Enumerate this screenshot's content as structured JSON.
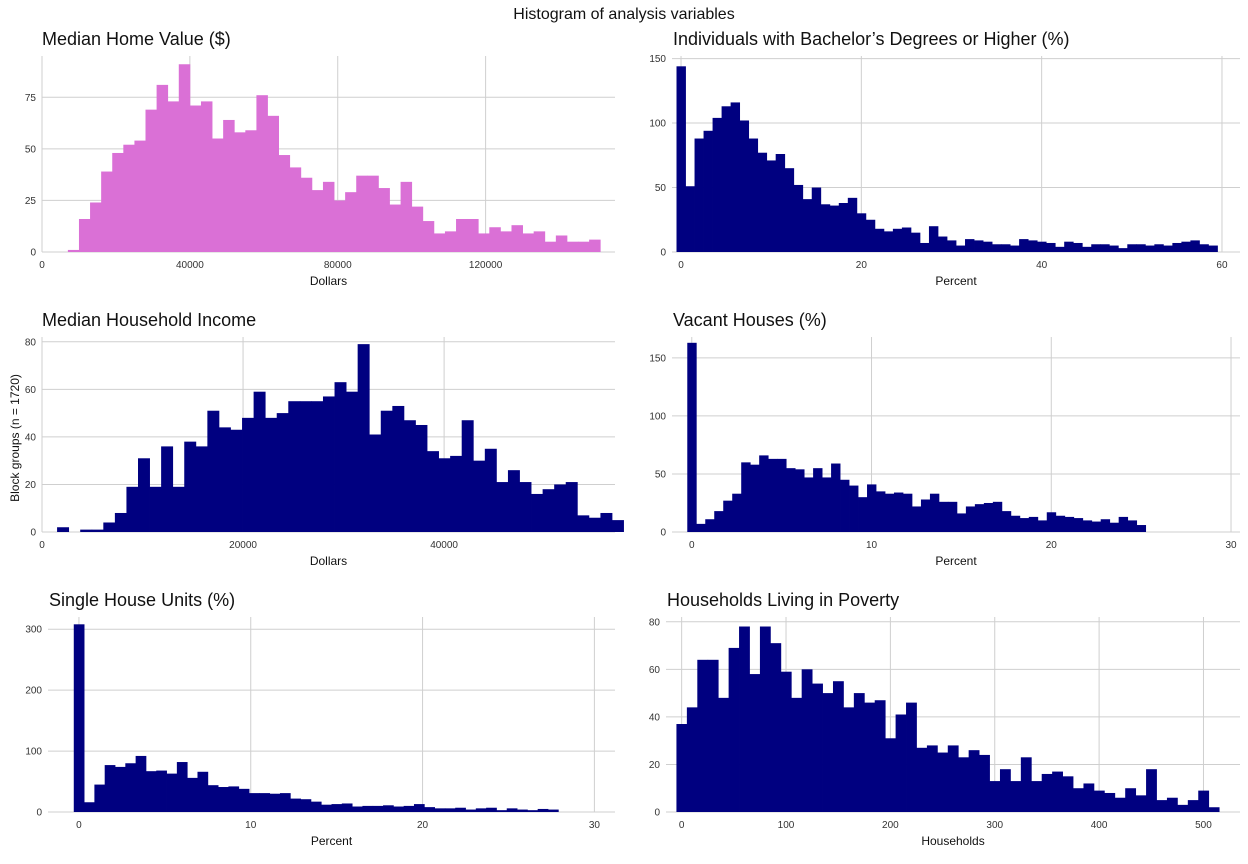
{
  "suptitle": "Histogram of analysis variables",
  "ylabel_shared": "Block groups (n = 1720)",
  "chart_data": [
    {
      "type": "bar",
      "title": "Median Home Value ($)",
      "xlabel": "Dollars",
      "color": "#DA70D6",
      "xlim": [
        0,
        155000
      ],
      "ylim": [
        0,
        95
      ],
      "xticks": [
        0,
        40000,
        80000,
        120000
      ],
      "yticks": [
        0,
        25,
        50,
        75
      ],
      "bin_start": 7000,
      "bin_width": 3000,
      "values": [
        1,
        16,
        24,
        39,
        48,
        52,
        54,
        69,
        81,
        73,
        91,
        71,
        73,
        55,
        64,
        58,
        59,
        76,
        66,
        47,
        41,
        36,
        30,
        34,
        25,
        29,
        37,
        37,
        31,
        23,
        34,
        22,
        15,
        9,
        10,
        16,
        16,
        9,
        12,
        10,
        13,
        9,
        10,
        5,
        8,
        5,
        5,
        6
      ]
    },
    {
      "type": "bar",
      "title": "Individuals with Bachelor’s Degrees or Higher (%)",
      "xlabel": "Percent",
      "color": "#000080",
      "xlim": [
        -1,
        62
      ],
      "ylim": [
        0,
        152
      ],
      "xticks": [
        0,
        20,
        40,
        60
      ],
      "yticks": [
        0,
        50,
        100,
        150
      ],
      "bin_start": -0.5,
      "bin_width": 1,
      "values": [
        144,
        51,
        88,
        94,
        104,
        113,
        116,
        102,
        88,
        77,
        71,
        76,
        65,
        52,
        41,
        50,
        37,
        36,
        38,
        42,
        30,
        25,
        18,
        16,
        18,
        19,
        15,
        7,
        20,
        12,
        9,
        5,
        10,
        9,
        8,
        6,
        6,
        5,
        10,
        9,
        8,
        7,
        4,
        8,
        7,
        4,
        6,
        6,
        5,
        3,
        6,
        6,
        5,
        6,
        5,
        7,
        8,
        9,
        6,
        5
      ]
    },
    {
      "type": "bar",
      "title": "Median Household Income",
      "xlabel": "Dollars",
      "color": "#000080",
      "xlim": [
        0,
        57000
      ],
      "ylim": [
        0,
        82
      ],
      "xticks": [
        0,
        20000,
        40000
      ],
      "yticks": [
        0,
        20,
        40,
        60,
        80
      ],
      "bin_start": 1500,
      "bin_width": 1150,
      "values": [
        2,
        0,
        1,
        1,
        4,
        8,
        19,
        31,
        19,
        36,
        19,
        38,
        36,
        51,
        44,
        43,
        48,
        59,
        48,
        50,
        55,
        55,
        55,
        57,
        63,
        59,
        79,
        41,
        51,
        53,
        47,
        45,
        34,
        31,
        32,
        47,
        30,
        35,
        21,
        26,
        21,
        16,
        18,
        20,
        21,
        7,
        6,
        8,
        5
      ]
    },
    {
      "type": "bar",
      "title": "Vacant Houses (%)",
      "xlabel": "Percent",
      "color": "#000080",
      "xlim": [
        -1.1,
        30.5
      ],
      "ylim": [
        0,
        168
      ],
      "xticks": [
        0,
        10,
        20,
        30
      ],
      "yticks": [
        0,
        50,
        100,
        150
      ],
      "bin_start": -0.25,
      "bin_width": 0.5,
      "values": [
        163,
        7,
        11,
        18,
        27,
        33,
        60,
        58,
        66,
        63,
        63,
        55,
        54,
        47,
        55,
        47,
        59,
        45,
        40,
        30,
        41,
        35,
        33,
        34,
        33,
        22,
        28,
        33,
        26,
        26,
        16,
        22,
        24,
        25,
        26,
        18,
        14,
        12,
        13,
        10,
        17,
        14,
        13,
        12,
        10,
        9,
        11,
        8,
        13,
        10,
        6
      ]
    },
    {
      "type": "bar",
      "title": "Single House Units (%)",
      "xlabel": "Percent",
      "color": "#000080",
      "xlim": [
        -1.8,
        31.2
      ],
      "ylim": [
        0,
        320
      ],
      "xticks": [
        0,
        10,
        20,
        30
      ],
      "yticks": [
        0,
        100,
        200,
        300
      ],
      "bin_start": -0.3,
      "bin_width": 0.6,
      "values": [
        308,
        16,
        45,
        77,
        74,
        80,
        92,
        67,
        68,
        63,
        82,
        56,
        66,
        44,
        41,
        42,
        38,
        31,
        31,
        30,
        31,
        22,
        21,
        17,
        12,
        13,
        14,
        9,
        10,
        10,
        11,
        9,
        10,
        13,
        8,
        6,
        6,
        7,
        4,
        6,
        7,
        3,
        6,
        4,
        3,
        5,
        4
      ]
    },
    {
      "type": "bar",
      "title": "Households Living in Poverty",
      "xlabel": "Households",
      "color": "#000080",
      "xlim": [
        -15,
        535
      ],
      "ylim": [
        0,
        82
      ],
      "xticks": [
        0,
        100,
        200,
        300,
        400,
        500
      ],
      "yticks": [
        0,
        20,
        40,
        60,
        80
      ],
      "bin_start": -5,
      "bin_width": 10,
      "values": [
        37,
        44,
        64,
        64,
        48,
        69,
        78,
        58,
        78,
        71,
        59,
        48,
        60,
        54,
        50,
        55,
        44,
        50,
        46,
        47,
        31,
        41,
        46,
        27,
        28,
        25,
        28,
        23,
        26,
        24,
        13,
        18,
        13,
        23,
        13,
        16,
        17,
        15,
        10,
        12,
        9,
        8,
        6,
        10,
        7,
        18,
        5,
        6,
        3,
        5,
        9,
        2
      ]
    }
  ]
}
